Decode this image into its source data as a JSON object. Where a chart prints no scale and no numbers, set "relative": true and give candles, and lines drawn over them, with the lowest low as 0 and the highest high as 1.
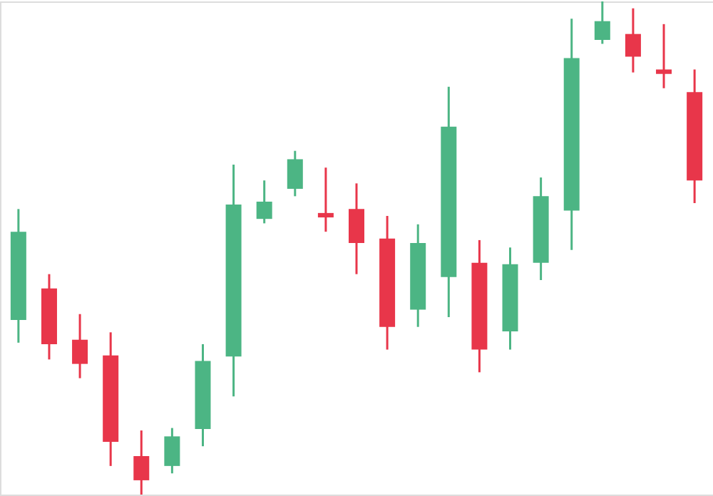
{
  "chart_data": {
    "type": "candlestick",
    "relative": true,
    "categories": [
      null,
      null,
      null,
      null,
      null,
      null,
      null,
      null,
      null,
      null,
      null,
      null,
      null,
      null,
      null,
      null,
      null,
      null,
      null,
      null,
      null,
      null,
      null
    ],
    "ohlc": [
      [
        0.354,
        0.579,
        0.308,
        0.533
      ],
      [
        0.418,
        0.447,
        0.274,
        0.305
      ],
      [
        0.314,
        0.366,
        0.236,
        0.265
      ],
      [
        0.282,
        0.329,
        0.058,
        0.107
      ],
      [
        0.078,
        0.13,
        0.0,
        0.029
      ],
      [
        0.058,
        0.135,
        0.043,
        0.118
      ],
      [
        0.133,
        0.305,
        0.098,
        0.271
      ],
      [
        0.28,
        0.669,
        0.199,
        0.588
      ],
      [
        0.559,
        0.637,
        0.55,
        0.594
      ],
      [
        0.62,
        0.697,
        0.605,
        0.68
      ],
      [
        0.571,
        0.663,
        0.533,
        0.562
      ],
      [
        0.579,
        0.631,
        0.447,
        0.51
      ],
      [
        0.519,
        0.565,
        0.294,
        0.34
      ],
      [
        0.375,
        0.548,
        0.34,
        0.51
      ],
      [
        0.441,
        0.827,
        0.36,
        0.746
      ],
      [
        0.47,
        0.516,
        0.248,
        0.294
      ],
      [
        0.331,
        0.501,
        0.294,
        0.467
      ],
      [
        0.47,
        0.643,
        0.435,
        0.605
      ],
      [
        0.576,
        0.965,
        0.496,
        0.885
      ],
      [
        0.922,
        1.0,
        0.914,
        0.96
      ],
      [
        0.934,
        0.986,
        0.856,
        0.888
      ],
      [
        0.862,
        0.954,
        0.824,
        0.853
      ],
      [
        0.816,
        0.862,
        0.591,
        0.637
      ]
    ],
    "colors": [
      "#4cb584",
      "#e8364a",
      "#e8364a",
      "#e8364a",
      "#e8364a",
      "#4cb584",
      "#4cb584",
      "#4cb584",
      "#4cb584",
      "#4cb584",
      "#e8364a",
      "#e8364a",
      "#e8364a",
      "#4cb584",
      "#4cb584",
      "#e8364a",
      "#4cb584",
      "#4cb584",
      "#4cb584",
      "#4cb584",
      "#e8364a",
      "#e8364a",
      "#e8364a"
    ]
  }
}
